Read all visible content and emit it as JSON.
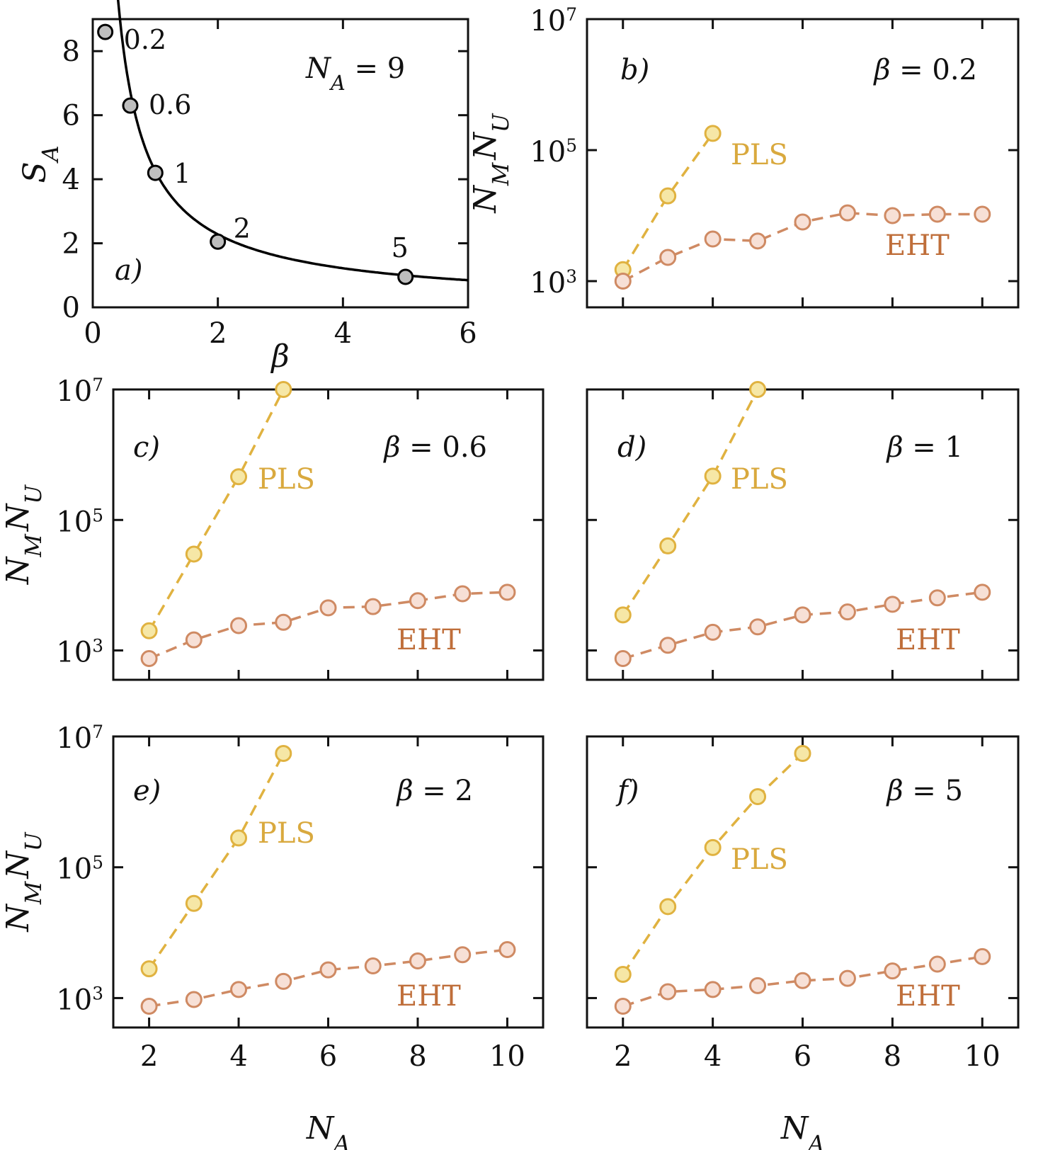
{
  "colors": {
    "pls_line": "#E0B240",
    "pls_fill": "#F6E7A6",
    "pls_text": "#D9A93E",
    "eht_line": "#CF8A63",
    "eht_fill": "#F7E0D6",
    "eht_text": "#BF6E3A",
    "sa_line": "#000000",
    "sa_fill": "#BEBEBE",
    "frame": "#111111"
  },
  "chart_data": [
    {
      "id": "a",
      "type": "line",
      "panel_label": "a)",
      "annotation": "N_A = 9",
      "xlabel": "β",
      "ylabel": "S_A",
      "xlim": [
        0,
        6
      ],
      "ylim": [
        0,
        9
      ],
      "xticks": [
        0,
        2,
        4,
        6
      ],
      "xtick_labels": [
        "0",
        "2",
        "4",
        "6"
      ],
      "yticks": [
        0,
        2,
        4,
        6,
        8
      ],
      "ytick_labels": [
        "0",
        "2",
        "4",
        "6",
        "8"
      ],
      "curve_formula": "S_A = 4.25 / beta^0.9 (approximate fit)",
      "points": [
        {
          "x": 0.2,
          "y": 8.6,
          "label": "0.2"
        },
        {
          "x": 0.6,
          "y": 6.3,
          "label": "0.6"
        },
        {
          "x": 1.0,
          "y": 4.2,
          "label": "1"
        },
        {
          "x": 2.0,
          "y": 2.05,
          "label": "2"
        },
        {
          "x": 5.0,
          "y": 0.95,
          "label": "5"
        }
      ]
    },
    {
      "id": "b",
      "type": "line",
      "yscale": "log",
      "panel_label": "b)",
      "beta_label": "β = 0.2",
      "xlabel": "",
      "ylabel": "N_M N_U",
      "xlim": [
        1.2,
        10.8
      ],
      "ylim_exp": [
        2.6,
        7
      ],
      "xticks": [
        2,
        4,
        6,
        8,
        10
      ],
      "xtick_labels": [],
      "yticks_exp": [
        3,
        5,
        7
      ],
      "ytick_labels": [
        "10^3",
        "10^5",
        "10^7"
      ],
      "series": [
        {
          "name": "PLS",
          "x": [
            2,
            3,
            4
          ],
          "y": [
            1500,
            20000,
            180000
          ]
        },
        {
          "name": "EHT",
          "x": [
            2,
            3,
            4,
            5,
            6,
            7,
            8,
            9,
            10
          ],
          "y": [
            1000,
            2300,
            4400,
            4100,
            8000,
            11000,
            10000,
            10500,
            10500
          ]
        }
      ]
    },
    {
      "id": "c",
      "type": "line",
      "yscale": "log",
      "panel_label": "c)",
      "beta_label": "β = 0.6",
      "xlabel": "",
      "ylabel": "N_M N_U",
      "xlim": [
        1.2,
        10.8
      ],
      "ylim_exp": [
        2.55,
        7
      ],
      "xticks": [
        2,
        4,
        6,
        8,
        10
      ],
      "xtick_labels": [],
      "yticks_exp": [
        3,
        5,
        7
      ],
      "ytick_labels": [
        "10^3",
        "10^5",
        "10^7"
      ],
      "series": [
        {
          "name": "PLS",
          "x": [
            2,
            3,
            4,
            5
          ],
          "y": [
            2000,
            30000,
            460000,
            10000000
          ]
        },
        {
          "name": "EHT",
          "x": [
            2,
            3,
            4,
            5,
            6,
            7,
            8,
            9,
            10
          ],
          "y": [
            750,
            1450,
            2400,
            2700,
            4500,
            4700,
            5800,
            7400,
            7800
          ]
        }
      ]
    },
    {
      "id": "d",
      "type": "line",
      "yscale": "log",
      "panel_label": "d)",
      "beta_label": "β = 1",
      "xlabel": "",
      "ylabel": "",
      "xlim": [
        1.2,
        10.8
      ],
      "ylim_exp": [
        2.55,
        7
      ],
      "xticks": [
        2,
        4,
        6,
        8,
        10
      ],
      "xtick_labels": [],
      "yticks_exp": [
        3,
        5,
        7
      ],
      "ytick_labels": [],
      "series": [
        {
          "name": "PLS",
          "x": [
            2,
            3,
            4,
            5
          ],
          "y": [
            3500,
            40000,
            470000,
            10000000
          ]
        },
        {
          "name": "EHT",
          "x": [
            2,
            3,
            4,
            5,
            6,
            7,
            8,
            9,
            10
          ],
          "y": [
            750,
            1200,
            1900,
            2300,
            3500,
            3900,
            5100,
            6400,
            7800
          ]
        }
      ]
    },
    {
      "id": "e",
      "type": "line",
      "yscale": "log",
      "panel_label": "e)",
      "beta_label": "β = 2",
      "xlabel": "N_A",
      "ylabel": "N_M N_U",
      "xlim": [
        1.2,
        10.8
      ],
      "ylim_exp": [
        2.55,
        7
      ],
      "xticks": [
        2,
        4,
        6,
        8,
        10
      ],
      "xtick_labels": [
        "2",
        "4",
        "6",
        "8",
        "10"
      ],
      "yticks_exp": [
        3,
        5,
        7
      ],
      "ytick_labels": [
        "10^3",
        "10^5",
        "10^7"
      ],
      "series": [
        {
          "name": "PLS",
          "x": [
            2,
            3,
            4,
            5
          ],
          "y": [
            2800,
            28000,
            280000,
            5500000
          ]
        },
        {
          "name": "EHT",
          "x": [
            2,
            3,
            4,
            5,
            6,
            7,
            8,
            9,
            10
          ],
          "y": [
            750,
            950,
            1350,
            1800,
            2700,
            3100,
            3700,
            4600,
            5500
          ]
        }
      ]
    },
    {
      "id": "f",
      "type": "line",
      "yscale": "log",
      "panel_label": "f)",
      "beta_label": "β = 5",
      "xlabel": "N_A",
      "ylabel": "",
      "xlim": [
        1.2,
        10.8
      ],
      "ylim_exp": [
        2.55,
        7
      ],
      "xticks": [
        2,
        4,
        6,
        8,
        10
      ],
      "xtick_labels": [
        "2",
        "4",
        "6",
        "8",
        "10"
      ],
      "yticks_exp": [
        3,
        5,
        7
      ],
      "ytick_labels": [],
      "series": [
        {
          "name": "PLS",
          "x": [
            2,
            3,
            4,
            5,
            6
          ],
          "y": [
            2300,
            25000,
            200000,
            1200000,
            5500000
          ]
        },
        {
          "name": "EHT",
          "x": [
            2,
            3,
            4,
            5,
            6,
            7,
            8,
            9,
            10
          ],
          "y": [
            750,
            1250,
            1350,
            1550,
            1850,
            2000,
            2600,
            3300,
            4300
          ]
        }
      ]
    }
  ]
}
